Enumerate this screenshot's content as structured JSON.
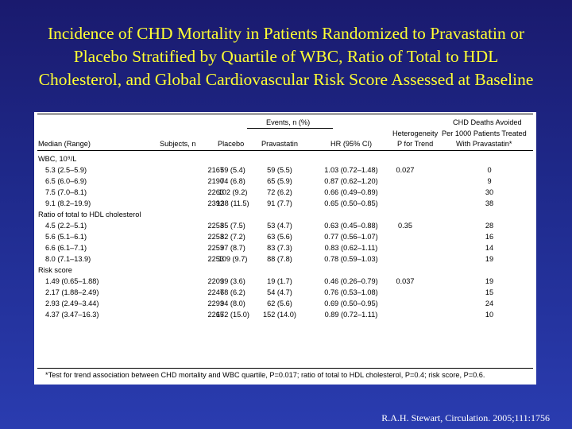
{
  "slide": {
    "title_lines": [
      "Incidence of CHD Mortality in Patients Randomized to Pravastatin or",
      "Placebo Stratified by Quartile of WBC, Ratio of Total to HDL",
      "Cholesterol, and Global Cardiovascular Risk Score Assessed at Baseline"
    ],
    "citation": "R.A.H. Stewart, Circulation. 2005;111:1756"
  },
  "table": {
    "headers": {
      "events_group": "Events, n (%)",
      "median": "Median (Range)",
      "subjects": "Subjects, n",
      "placebo": "Placebo",
      "pravastatin": "Pravastatin",
      "hr": "HR (95% CI)",
      "heterogeneity_1": "Heterogeneity",
      "heterogeneity_2": "P for Trend",
      "avoided_1": "CHD Deaths Avoided",
      "avoided_2": "Per 1000 Patients Treated",
      "avoided_3": "With Pravastatin*"
    },
    "sections": [
      {
        "label": "WBC, 10⁹/L",
        "rows": [
          {
            "median": "5.3 (2.5–5.9)",
            "subjects": "2167",
            "placebo": "59 (5.4)",
            "pravastatin": "59 (5.5)",
            "hr": "1.03 (0.72–1.48)",
            "p": "0.027",
            "avoided": "0"
          },
          {
            "median": "6.5 (6.0–6.9)",
            "subjects": "2190",
            "placebo": "74 (6.8)",
            "pravastatin": "65 (5.9)",
            "hr": "0.87 (0.62–1.20)",
            "p": "",
            "avoided": "9"
          },
          {
            "median": "7.5 (7.0–8.1)",
            "subjects": "2263",
            "placebo": "102 (9.2)",
            "pravastatin": "72 (6.2)",
            "hr": "0.66 (0.49–0.89)",
            "p": "",
            "avoided": "30"
          },
          {
            "median": "9.1 (8.2–19.9)",
            "subjects": "2392",
            "placebo": "138 (11.5)",
            "pravastatin": "91 (7.7)",
            "hr": "0.65 (0.50–0.85)",
            "p": "",
            "avoided": "38"
          }
        ]
      },
      {
        "label": "Ratio of total to HDL cholesterol",
        "rows": [
          {
            "median": "4.5 (2.2–5.1)",
            "subjects": "2253",
            "placebo": "85 (7.5)",
            "pravastatin": "53 (4.7)",
            "hr": "0.63 (0.45–0.88)",
            "p": "0.35",
            "avoided": "28"
          },
          {
            "median": "5.6 (5.1–6.1)",
            "subjects": "2253",
            "placebo": "82 (7.2)",
            "pravastatin": "63 (5.6)",
            "hr": "0.77 (0.56–1.07)",
            "p": "",
            "avoided": "16"
          },
          {
            "median": "6.6 (6.1–7.1)",
            "subjects": "2253",
            "placebo": "97 (8.7)",
            "pravastatin": "83 (7.3)",
            "hr": "0.83 (0.62–1.11)",
            "p": "",
            "avoided": "14"
          },
          {
            "median": "8.0 (7.1–13.9)",
            "subjects": "2253",
            "placebo": "109 (9.7)",
            "pravastatin": "88 (7.8)",
            "hr": "0.78 (0.59–1.03)",
            "p": "",
            "avoided": "19"
          }
        ]
      },
      {
        "label": "Risk score",
        "rows": [
          {
            "median": "1.49 (0.65–1.88)",
            "subjects": "2209",
            "placebo": "39 (3.6)",
            "pravastatin": "19 (1.7)",
            "hr": "0.46 (0.26–0.79)",
            "p": "0.037",
            "avoided": "19"
          },
          {
            "median": "2.17 (1.88–2.49)",
            "subjects": "2247",
            "placebo": "68 (6.2)",
            "pravastatin": "54 (4.7)",
            "hr": "0.76 (0.53–1.08)",
            "p": "",
            "avoided": "15"
          },
          {
            "median": "2.93 (2.49–3.44)",
            "subjects": "2293",
            "placebo": "94 (8.0)",
            "pravastatin": "62 (5.6)",
            "hr": "0.69 (0.50–0.95)",
            "p": "",
            "avoided": "24"
          },
          {
            "median": "4.37 (3.47–16.3)",
            "subjects": "2265",
            "placebo": "172 (15.0)",
            "pravastatin": "152 (14.0)",
            "hr": "0.89 (0.72–1.11)",
            "p": "",
            "avoided": "10"
          }
        ]
      }
    ],
    "footnote": "*Test for trend association between CHD mortality and WBC quartile, P=0.017; ratio of total to HDL cholesterol, P=0.4; risk score, P=0.6."
  }
}
